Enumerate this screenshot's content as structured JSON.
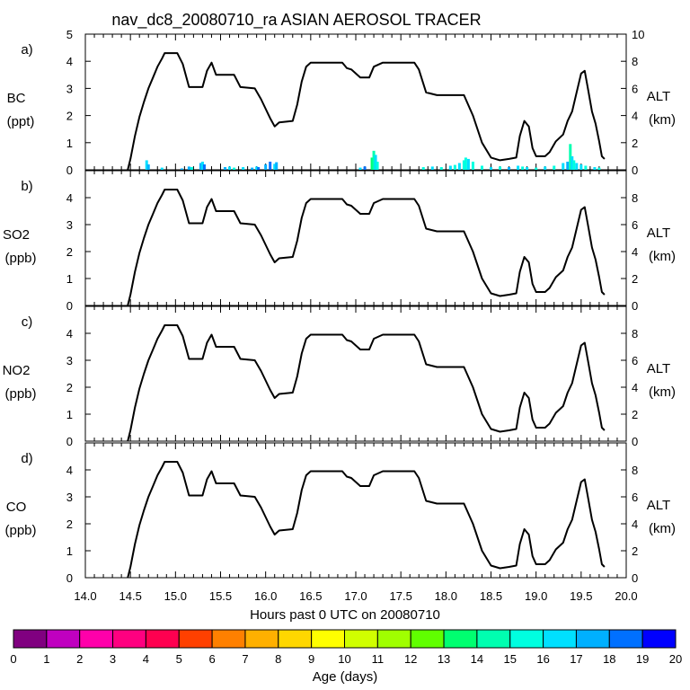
{
  "chart_data": {
    "type": "line",
    "title": "nav_dc8_20080710_ra ASIAN AEROSOL TRACER",
    "xlabel": "Hours past 0 UTC on 20080710",
    "xlim": [
      14.0,
      20.0
    ],
    "xticks": [
      "14.0",
      "14.5",
      "15.0",
      "15.5",
      "16.0",
      "16.5",
      "17.0",
      "17.5",
      "18.0",
      "18.5",
      "19.0",
      "19.5",
      "20.0"
    ],
    "right_axis": {
      "label": "ALT",
      "unit": "(km)",
      "ylim": [
        0,
        10
      ],
      "ticks": [
        "0",
        "2",
        "4",
        "6",
        "8",
        "10"
      ]
    },
    "altitude_km": [
      [
        14.47,
        0.0
      ],
      [
        14.5,
        0.8
      ],
      [
        14.55,
        2.5
      ],
      [
        14.6,
        3.9
      ],
      [
        14.65,
        5.0
      ],
      [
        14.7,
        6.0
      ],
      [
        14.75,
        6.8
      ],
      [
        14.8,
        7.6
      ],
      [
        14.85,
        8.2
      ],
      [
        14.88,
        8.6
      ],
      [
        15.02,
        8.6
      ],
      [
        15.08,
        7.8
      ],
      [
        15.15,
        6.1
      ],
      [
        15.3,
        6.1
      ],
      [
        15.35,
        7.3
      ],
      [
        15.4,
        7.9
      ],
      [
        15.45,
        7.0
      ],
      [
        15.65,
        7.0
      ],
      [
        15.72,
        6.1
      ],
      [
        15.88,
        6.0
      ],
      [
        15.95,
        5.2
      ],
      [
        16.05,
        3.8
      ],
      [
        16.1,
        3.2
      ],
      [
        16.15,
        3.5
      ],
      [
        16.3,
        3.6
      ],
      [
        16.35,
        4.8
      ],
      [
        16.4,
        6.5
      ],
      [
        16.45,
        7.6
      ],
      [
        16.5,
        7.9
      ],
      [
        16.85,
        7.9
      ],
      [
        16.9,
        7.5
      ],
      [
        16.95,
        7.4
      ],
      [
        17.05,
        6.8
      ],
      [
        17.15,
        6.8
      ],
      [
        17.2,
        7.6
      ],
      [
        17.3,
        7.9
      ],
      [
        17.65,
        7.9
      ],
      [
        17.7,
        7.4
      ],
      [
        17.78,
        5.7
      ],
      [
        17.9,
        5.5
      ],
      [
        18.2,
        5.5
      ],
      [
        18.3,
        4.0
      ],
      [
        18.4,
        2.0
      ],
      [
        18.5,
        0.9
      ],
      [
        18.6,
        0.7
      ],
      [
        18.7,
        0.8
      ],
      [
        18.78,
        0.9
      ],
      [
        18.82,
        2.5
      ],
      [
        18.87,
        3.6
      ],
      [
        18.92,
        3.2
      ],
      [
        18.96,
        1.6
      ],
      [
        19.0,
        1.0
      ],
      [
        19.1,
        1.0
      ],
      [
        19.15,
        1.3
      ],
      [
        19.22,
        2.1
      ],
      [
        19.3,
        2.6
      ],
      [
        19.35,
        3.6
      ],
      [
        19.4,
        4.3
      ],
      [
        19.45,
        5.7
      ],
      [
        19.5,
        7.1
      ],
      [
        19.54,
        7.3
      ],
      [
        19.58,
        5.8
      ],
      [
        19.62,
        4.3
      ],
      [
        19.66,
        3.4
      ],
      [
        19.7,
        2.1
      ],
      [
        19.73,
        1.0
      ],
      [
        19.76,
        0.8
      ]
    ],
    "panels": [
      {
        "letter": "a)",
        "species": "BC",
        "unit": "(ppt)",
        "ylim": [
          0,
          5
        ],
        "yticks": [
          "0",
          "1",
          "2",
          "3",
          "4",
          "5"
        ],
        "tracer_bars": [
          [
            14.68,
            0.35,
            16
          ],
          [
            14.7,
            0.2,
            17
          ],
          [
            14.85,
            0.08,
            16
          ],
          [
            15.07,
            0.05,
            17
          ],
          [
            15.15,
            0.12,
            17
          ],
          [
            15.18,
            0.1,
            15
          ],
          [
            15.28,
            0.25,
            17
          ],
          [
            15.3,
            0.3,
            16
          ],
          [
            15.32,
            0.2,
            18
          ],
          [
            15.55,
            0.1,
            17
          ],
          [
            15.6,
            0.12,
            16
          ],
          [
            15.65,
            0.08,
            15
          ],
          [
            15.75,
            0.1,
            16
          ],
          [
            15.85,
            0.08,
            17
          ],
          [
            15.9,
            0.12,
            16
          ],
          [
            15.92,
            0.1,
            18
          ],
          [
            16.0,
            0.2,
            17
          ],
          [
            16.05,
            0.3,
            18
          ],
          [
            16.1,
            0.22,
            16
          ],
          [
            16.12,
            0.28,
            17
          ],
          [
            17.05,
            0.08,
            16
          ],
          [
            17.1,
            0.12,
            18
          ],
          [
            17.18,
            0.45,
            13
          ],
          [
            17.2,
            0.7,
            14
          ],
          [
            17.22,
            0.55,
            16
          ],
          [
            17.24,
            0.3,
            15
          ],
          [
            17.75,
            0.1,
            15
          ],
          [
            17.85,
            0.12,
            16
          ],
          [
            17.95,
            0.1,
            15
          ],
          [
            18.05,
            0.15,
            16
          ],
          [
            18.1,
            0.18,
            15
          ],
          [
            18.15,
            0.25,
            16
          ],
          [
            18.2,
            0.35,
            15
          ],
          [
            18.22,
            0.45,
            15
          ],
          [
            18.25,
            0.4,
            16
          ],
          [
            18.3,
            0.3,
            15
          ],
          [
            18.4,
            0.15,
            15
          ],
          [
            18.5,
            0.1,
            16
          ],
          [
            18.6,
            0.12,
            15
          ],
          [
            18.7,
            0.1,
            17
          ],
          [
            18.8,
            0.15,
            16
          ],
          [
            18.85,
            0.12,
            15
          ],
          [
            18.9,
            0.1,
            16
          ],
          [
            19.0,
            0.08,
            15
          ],
          [
            19.1,
            0.12,
            16
          ],
          [
            19.2,
            0.15,
            15
          ],
          [
            19.3,
            0.25,
            16
          ],
          [
            19.35,
            0.3,
            17
          ],
          [
            19.38,
            0.95,
            14
          ],
          [
            19.4,
            0.5,
            16
          ],
          [
            19.42,
            0.35,
            15
          ],
          [
            19.45,
            0.25,
            16
          ],
          [
            19.5,
            0.2,
            16
          ],
          [
            19.55,
            0.15,
            15
          ],
          [
            19.65,
            0.1,
            16
          ],
          [
            19.7,
            0.08,
            15
          ]
        ]
      },
      {
        "letter": "b)",
        "species": "SO2",
        "unit": "(ppb)",
        "ylim": [
          0,
          5
        ],
        "yticks": [
          "0",
          "1",
          "2",
          "3",
          "4"
        ],
        "tracer_bars": []
      },
      {
        "letter": "c)",
        "species": "NO2",
        "unit": "(ppb)",
        "ylim": [
          0,
          5
        ],
        "yticks": [
          "0",
          "1",
          "2",
          "3",
          "4"
        ],
        "tracer_bars": []
      },
      {
        "letter": "d)",
        "species": "CO",
        "unit": "(ppb)",
        "ylim": [
          0,
          5
        ],
        "yticks": [
          "0",
          "1",
          "2",
          "3",
          "4"
        ],
        "tracer_bars": []
      }
    ],
    "colorbar": {
      "label": "Age (days)",
      "ticks": [
        "0",
        "1",
        "2",
        "3",
        "4",
        "5",
        "6",
        "7",
        "8",
        "9",
        "10",
        "11",
        "12",
        "13",
        "14",
        "15",
        "16",
        "17",
        "18",
        "19",
        "20"
      ],
      "colors": [
        "#800080",
        "#c000c0",
        "#ff00aa",
        "#ff0080",
        "#ff0050",
        "#ff4000",
        "#ff8000",
        "#ffb000",
        "#ffd700",
        "#ffff00",
        "#d0ff00",
        "#a0ff00",
        "#60ff00",
        "#00ff70",
        "#00ffb0",
        "#00ffe0",
        "#00e0ff",
        "#00b0ff",
        "#0070ff",
        "#0000ff",
        "#7000ff"
      ]
    }
  }
}
